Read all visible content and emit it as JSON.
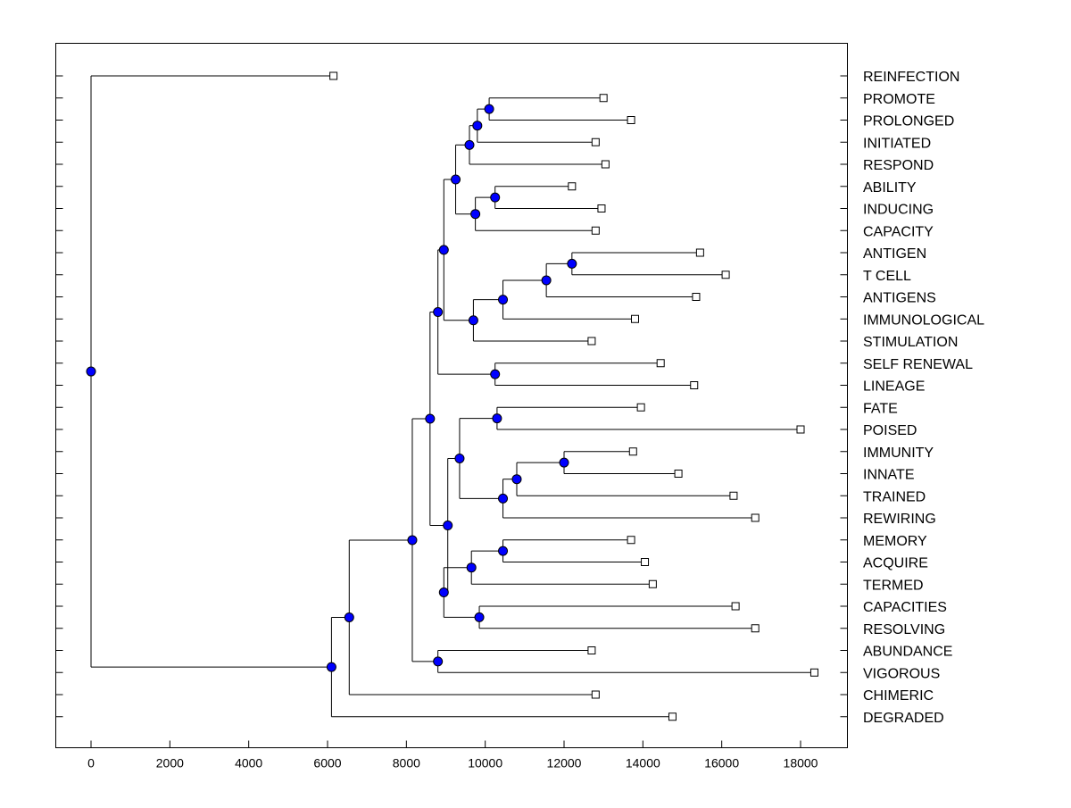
{
  "chart_data": {
    "type": "dendrogram",
    "title": "",
    "xlabel": "",
    "ylabel": "",
    "xlim": [
      -900,
      19000
    ],
    "x_ticks": [
      0,
      2000,
      4000,
      6000,
      8000,
      10000,
      12000,
      14000,
      16000,
      18000
    ],
    "x_tick_labels": [
      "0",
      "2000",
      "4000",
      "6000",
      "8000",
      "10000",
      "12000",
      "14000",
      "16000",
      "18000"
    ],
    "grid": false,
    "colors": {
      "node": "#0000ff",
      "leaf": "#ffffff",
      "line": "#000000"
    },
    "leaves": [
      {
        "label": "REINFECTION",
        "value": 6150
      },
      {
        "label": "PROMOTE",
        "value": 13000
      },
      {
        "label": "PROLONGED",
        "value": 13700
      },
      {
        "label": "INITIATED",
        "value": 12800
      },
      {
        "label": "RESPOND",
        "value": 13050
      },
      {
        "label": "ABILITY",
        "value": 12200
      },
      {
        "label": "INDUCING",
        "value": 12950
      },
      {
        "label": "CAPACITY",
        "value": 12800
      },
      {
        "label": "ANTIGEN",
        "value": 15450
      },
      {
        "label": "T CELL",
        "value": 16100
      },
      {
        "label": "ANTIGENS",
        "value": 15350
      },
      {
        "label": "IMMUNOLOGICAL",
        "value": 13800
      },
      {
        "label": "STIMULATION",
        "value": 12700
      },
      {
        "label": "SELF RENEWAL",
        "value": 14450
      },
      {
        "label": "LINEAGE",
        "value": 15300
      },
      {
        "label": "FATE",
        "value": 13950
      },
      {
        "label": "POISED",
        "value": 18000
      },
      {
        "label": "IMMUNITY",
        "value": 13750
      },
      {
        "label": "INNATE",
        "value": 14900
      },
      {
        "label": "TRAINED",
        "value": 16300
      },
      {
        "label": "REWIRING",
        "value": 16850
      },
      {
        "label": "MEMORY",
        "value": 13700
      },
      {
        "label": "ACQUIRE",
        "value": 14050
      },
      {
        "label": "TERMED",
        "value": 14250
      },
      {
        "label": "CAPACITIES",
        "value": 16350
      },
      {
        "label": "RESOLVING",
        "value": 16850
      },
      {
        "label": "ABUNDANCE",
        "value": 12700
      },
      {
        "label": "VIGOROUS",
        "value": 18350
      },
      {
        "label": "CHIMERIC",
        "value": 12800
      },
      {
        "label": "DEGRADED",
        "value": 14750
      }
    ],
    "nodes": [
      {
        "id": "n1",
        "value": 10100,
        "children": [
          "L1",
          "L2"
        ]
      },
      {
        "id": "n2",
        "value": 9800,
        "children": [
          "n1",
          "L3"
        ]
      },
      {
        "id": "n3",
        "value": 9600,
        "children": [
          "n2",
          "L4"
        ]
      },
      {
        "id": "n4",
        "value": 10250,
        "children": [
          "L5",
          "L6"
        ]
      },
      {
        "id": "n5",
        "value": 9750,
        "children": [
          "n4",
          "L7"
        ]
      },
      {
        "id": "n6",
        "value": 9250,
        "children": [
          "n3",
          "n5"
        ]
      },
      {
        "id": "n7",
        "value": 12200,
        "children": [
          "L8",
          "L9"
        ]
      },
      {
        "id": "n8",
        "value": 11550,
        "children": [
          "n7",
          "L10"
        ]
      },
      {
        "id": "n9",
        "value": 10450,
        "children": [
          "n8",
          "L11"
        ]
      },
      {
        "id": "n10",
        "value": 9700,
        "children": [
          "n9",
          "L12"
        ]
      },
      {
        "id": "n11",
        "value": 8950,
        "children": [
          "n6",
          "n10"
        ]
      },
      {
        "id": "n12",
        "value": 10250,
        "children": [
          "L13",
          "L14"
        ]
      },
      {
        "id": "n13",
        "value": 8800,
        "children": [
          "n11",
          "n12"
        ]
      },
      {
        "id": "n14",
        "value": 10300,
        "children": [
          "L15",
          "L16"
        ]
      },
      {
        "id": "n15",
        "value": 12000,
        "children": [
          "L17",
          "L18"
        ]
      },
      {
        "id": "n16",
        "value": 10800,
        "children": [
          "n15",
          "L19"
        ]
      },
      {
        "id": "n17",
        "value": 10450,
        "children": [
          "n16",
          "L20"
        ]
      },
      {
        "id": "n18",
        "value": 9350,
        "children": [
          "n14",
          "n17"
        ]
      },
      {
        "id": "n19",
        "value": 10450,
        "children": [
          "L21",
          "L22"
        ]
      },
      {
        "id": "n20",
        "value": 9650,
        "children": [
          "n19",
          "L23"
        ]
      },
      {
        "id": "n21",
        "value": 9850,
        "children": [
          "L24",
          "L25"
        ]
      },
      {
        "id": "n22",
        "value": 8950,
        "children": [
          "n20",
          "n21"
        ]
      },
      {
        "id": "n23",
        "value": 9050,
        "children": [
          "n18",
          "n22"
        ]
      },
      {
        "id": "n24",
        "value": 8600,
        "children": [
          "n13",
          "n23"
        ]
      },
      {
        "id": "n25",
        "value": 8800,
        "children": [
          "L26",
          "L27"
        ]
      },
      {
        "id": "n26",
        "value": 8150,
        "children": [
          "n24",
          "n25"
        ]
      },
      {
        "id": "n27",
        "value": 6550,
        "children": [
          "n26",
          "L28"
        ]
      },
      {
        "id": "n28",
        "value": 6100,
        "children": [
          "n27",
          "L29"
        ]
      },
      {
        "id": "n29",
        "value": 0,
        "children": [
          "L0",
          "n28"
        ]
      }
    ]
  }
}
